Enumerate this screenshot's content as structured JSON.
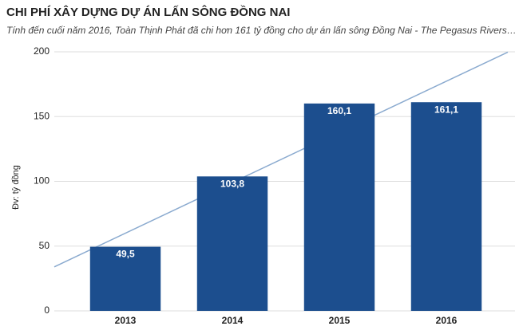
{
  "chart_data": {
    "type": "bar",
    "title": "CHI PHÍ XÂY DỰNG DỰ ÁN LẤN SÔNG ĐỒNG NAI",
    "subtitle": "Tính đến cuối năm 2016, Toàn Thịnh Phát đã chi hơn 161 tỷ đồng cho dự án lấn sông Đồng Nai - The Pegasus Rivers…",
    "y_label": "Đv: tỷ đồng",
    "categories": [
      "2013",
      "2014",
      "2015",
      "2016"
    ],
    "values": [
      49.5,
      103.8,
      160.1,
      161.1
    ],
    "value_labels": [
      "49,5",
      "103,8",
      "160,1",
      "161,1"
    ],
    "color": "#1c4e8e",
    "trendline": true,
    "trendline_color": "#8aaacf",
    "ylim": [
      0,
      200
    ],
    "yticks": [
      0,
      50,
      100,
      150,
      200
    ],
    "grid": true
  }
}
